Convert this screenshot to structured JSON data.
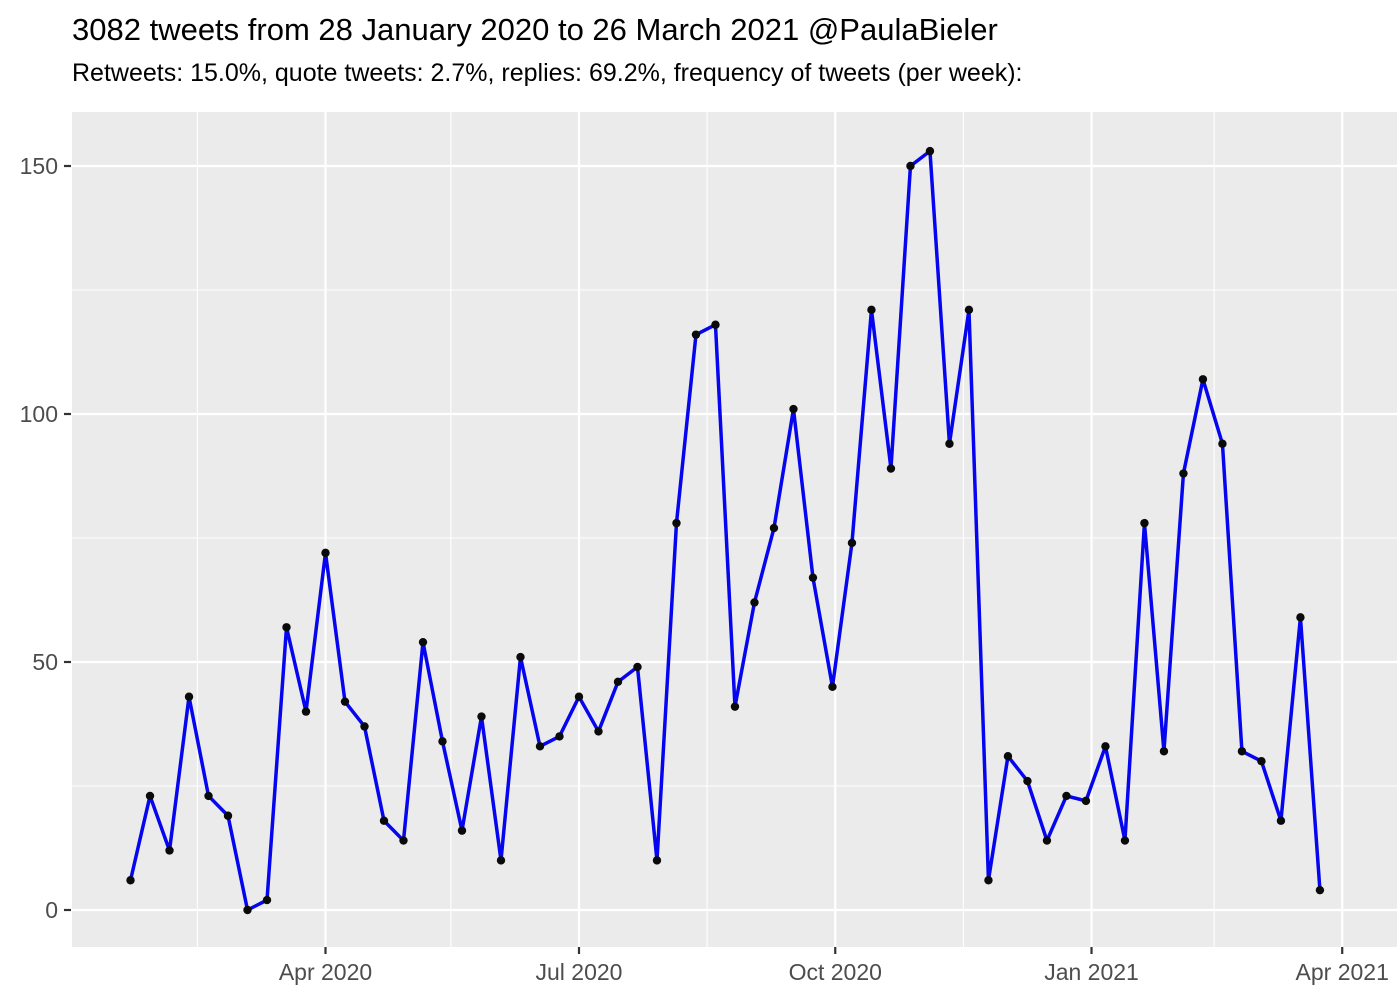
{
  "header": {
    "title": "3082 tweets from 28 January 2020 to 26 March 2021 @PaulaBieler",
    "subtitle": "Retweets: 15.0%, quote tweets: 2.7%, replies: 69.2%, frequency of tweets (per week):"
  },
  "chart_data": {
    "type": "line",
    "title": "3082 tweets from 28 January 2020 to 26 March 2021 @PaulaBieler",
    "subtitle": "Retweets: 15.0%, quote tweets: 2.7%, replies: 69.2%, frequency of tweets (per week):",
    "xlabel": "",
    "ylabel": "",
    "legend": "none",
    "grid": "white major and minor gridlines on gray panel",
    "ylim": [
      -7,
      161
    ],
    "y_ticks": [
      0,
      50,
      100,
      150
    ],
    "x_ticks": [
      {
        "label": "Apr 2020",
        "date": "2020-04-01"
      },
      {
        "label": "Jul 2020",
        "date": "2020-07-01"
      },
      {
        "label": "Oct 2020",
        "date": "2020-10-01"
      },
      {
        "label": "Jan 2021",
        "date": "2021-01-01"
      },
      {
        "label": "Apr 2021",
        "date": "2021-04-01"
      }
    ],
    "x_minor_gridlines": [
      "2020-02-15",
      "2020-05-16",
      "2020-08-16",
      "2020-11-16",
      "2021-02-14"
    ],
    "series": [
      {
        "name": "tweets per week",
        "points": [
          {
            "week": "2020-01-22",
            "value": 6
          },
          {
            "week": "2020-01-29",
            "value": 23
          },
          {
            "week": "2020-02-05",
            "value": 12
          },
          {
            "week": "2020-02-12",
            "value": 43
          },
          {
            "week": "2020-02-19",
            "value": 23
          },
          {
            "week": "2020-02-26",
            "value": 19
          },
          {
            "week": "2020-03-04",
            "value": 0
          },
          {
            "week": "2020-03-11",
            "value": 2
          },
          {
            "week": "2020-03-18",
            "value": 57
          },
          {
            "week": "2020-03-25",
            "value": 40
          },
          {
            "week": "2020-04-01",
            "value": 72
          },
          {
            "week": "2020-04-08",
            "value": 42
          },
          {
            "week": "2020-04-15",
            "value": 37
          },
          {
            "week": "2020-04-22",
            "value": 18
          },
          {
            "week": "2020-04-29",
            "value": 14
          },
          {
            "week": "2020-05-06",
            "value": 54
          },
          {
            "week": "2020-05-13",
            "value": 34
          },
          {
            "week": "2020-05-20",
            "value": 16
          },
          {
            "week": "2020-05-27",
            "value": 39
          },
          {
            "week": "2020-06-03",
            "value": 10
          },
          {
            "week": "2020-06-10",
            "value": 51
          },
          {
            "week": "2020-06-17",
            "value": 33
          },
          {
            "week": "2020-06-24",
            "value": 35
          },
          {
            "week": "2020-07-01",
            "value": 43
          },
          {
            "week": "2020-07-08",
            "value": 36
          },
          {
            "week": "2020-07-15",
            "value": 46
          },
          {
            "week": "2020-07-22",
            "value": 49
          },
          {
            "week": "2020-07-29",
            "value": 10
          },
          {
            "week": "2020-08-05",
            "value": 78
          },
          {
            "week": "2020-08-12",
            "value": 116
          },
          {
            "week": "2020-08-19",
            "value": 118
          },
          {
            "week": "2020-08-26",
            "value": 41
          },
          {
            "week": "2020-09-02",
            "value": 62
          },
          {
            "week": "2020-09-09",
            "value": 77
          },
          {
            "week": "2020-09-16",
            "value": 101
          },
          {
            "week": "2020-09-23",
            "value": 67
          },
          {
            "week": "2020-09-30",
            "value": 45
          },
          {
            "week": "2020-10-07",
            "value": 74
          },
          {
            "week": "2020-10-14",
            "value": 121
          },
          {
            "week": "2020-10-21",
            "value": 89
          },
          {
            "week": "2020-10-28",
            "value": 150
          },
          {
            "week": "2020-11-04",
            "value": 153
          },
          {
            "week": "2020-11-11",
            "value": 94
          },
          {
            "week": "2020-11-18",
            "value": 121
          },
          {
            "week": "2020-11-25",
            "value": 6
          },
          {
            "week": "2020-12-02",
            "value": 31
          },
          {
            "week": "2020-12-09",
            "value": 26
          },
          {
            "week": "2020-12-16",
            "value": 14
          },
          {
            "week": "2020-12-23",
            "value": 23
          },
          {
            "week": "2020-12-30",
            "value": 22
          },
          {
            "week": "2021-01-06",
            "value": 33
          },
          {
            "week": "2021-01-13",
            "value": 14
          },
          {
            "week": "2021-01-20",
            "value": 78
          },
          {
            "week": "2021-01-27",
            "value": 32
          },
          {
            "week": "2021-02-03",
            "value": 88
          },
          {
            "week": "2021-02-10",
            "value": 107
          },
          {
            "week": "2021-02-17",
            "value": 94
          },
          {
            "week": "2021-02-24",
            "value": 32
          },
          {
            "week": "2021-03-03",
            "value": 30
          },
          {
            "week": "2021-03-10",
            "value": 18
          },
          {
            "week": "2021-03-17",
            "value": 59
          },
          {
            "week": "2021-03-24",
            "value": 4
          }
        ]
      }
    ],
    "colors": {
      "line": "#0505f0",
      "point": "#0a0a0a",
      "panel_background": "#ebebeb",
      "gridline": "#ffffff",
      "tick_mark": "#333333",
      "tick_label": "#4d4d4d",
      "title_text": "#000000"
    }
  }
}
